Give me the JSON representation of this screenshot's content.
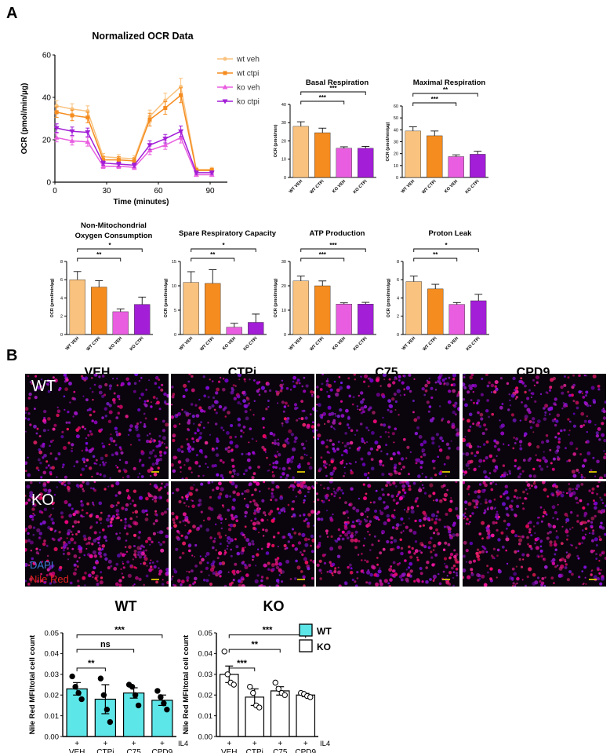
{
  "panel_labels": {
    "a": "A",
    "b": "B"
  },
  "microscopy": {
    "columns": [
      "VEH",
      "CTPi",
      "C75",
      "CPD9"
    ],
    "rows": [
      "WT",
      "KO"
    ],
    "stain_labels": [
      {
        "text": "DAPI",
        "color": "#3d7bd6"
      },
      {
        "text": "Nile Red",
        "color": "#e02020"
      }
    ]
  },
  "colors": {
    "wt_veh": "#f9c27e",
    "wt_ctpi": "#f58c1f",
    "ko_veh": "#e95ee0",
    "ko_ctpi": "#a21ed7",
    "wt_bar": "#5de6e8"
  },
  "chart_data": [
    {
      "id": "ocr_line",
      "type": "line",
      "title": "Normalized OCR Data",
      "xlabel": "Time (minutes)",
      "ylabel": "OCR (pmol/min/µg)",
      "xlim": [
        0,
        100
      ],
      "ylim": [
        0,
        60
      ],
      "xticks": [
        0,
        30,
        60,
        90
      ],
      "yticks": [
        0,
        20,
        40,
        60
      ],
      "x": [
        1,
        10,
        19,
        28,
        37,
        46,
        55,
        64,
        73,
        82,
        91
      ],
      "legend_position": "right",
      "series": [
        {
          "name": "wt veh",
          "marker": "circle",
          "values": [
            36,
            34.5,
            33.5,
            12,
            11.5,
            11,
            31,
            38.5,
            45,
            6,
            6
          ],
          "err": [
            2.5,
            2.5,
            2.5,
            1.5,
            1.5,
            1.5,
            3,
            3.5,
            4,
            1,
            1
          ]
        },
        {
          "name": "wt ctpi",
          "marker": "square",
          "values": [
            33,
            31.5,
            30.5,
            10.5,
            10.5,
            10,
            29.5,
            35,
            41,
            5.5,
            5.5
          ],
          "err": [
            2.5,
            2.5,
            2.5,
            1.5,
            1.5,
            1.5,
            3,
            3,
            3.5,
            1,
            1
          ]
        },
        {
          "name": "ko veh",
          "marker": "triangle-up",
          "values": [
            21,
            19.5,
            19,
            7.5,
            7.5,
            7,
            15,
            17.5,
            21,
            3.5,
            3.5
          ],
          "err": [
            2,
            2,
            2,
            1,
            1,
            1,
            2,
            2,
            2.5,
            0.8,
            0.8
          ]
        },
        {
          "name": "ko ctpi",
          "marker": "triangle-down",
          "values": [
            25.5,
            24,
            23.5,
            9,
            8.5,
            8,
            17.5,
            20.5,
            24,
            4.5,
            4.5
          ],
          "err": [
            2,
            2,
            2,
            1,
            1,
            1,
            2,
            2,
            2.5,
            0.8,
            0.8
          ]
        }
      ]
    },
    {
      "id": "basal",
      "type": "bar",
      "title": "Basal Respiration",
      "ylabel": "OCR (pmol/min)",
      "categories": [
        "WT VEH",
        "WT CTPi",
        "KO VEH",
        "KO CTPi"
      ],
      "values": [
        28,
        24.5,
        16,
        16
      ],
      "err": [
        2.5,
        2.5,
        0.8,
        1
      ],
      "ylim": [
        0,
        40
      ],
      "yticks": [
        0,
        10,
        20,
        30,
        40
      ],
      "significance": [
        {
          "from": 0,
          "to": 2,
          "label": "***"
        },
        {
          "from": 0,
          "to": 3,
          "label": "***"
        }
      ]
    },
    {
      "id": "maximal",
      "type": "bar",
      "title": "Maximal Respiration",
      "ylabel": "OCR (pmol/min/µg)",
      "categories": [
        "WT VEH",
        "WT CTPi",
        "KO VEH",
        "KO CTPi"
      ],
      "values": [
        39,
        35,
        17.5,
        19.5
      ],
      "err": [
        3.5,
        4,
        1.5,
        2.5
      ],
      "ylim": [
        0,
        60
      ],
      "yticks": [
        0,
        10,
        20,
        30,
        40,
        50,
        60
      ],
      "significance": [
        {
          "from": 0,
          "to": 2,
          "label": "***"
        },
        {
          "from": 0,
          "to": 3,
          "label": "**"
        }
      ]
    },
    {
      "id": "nonmito",
      "type": "bar",
      "title": "Non-Mitochondrial\nOxygen Consumption",
      "ylabel": "OCR (pmol/min/µg)",
      "categories": [
        "WT VEH",
        "WT CTPi",
        "KO VEH",
        "KO CTPi"
      ],
      "values": [
        6,
        5.2,
        2.5,
        3.3
      ],
      "err": [
        0.9,
        0.7,
        0.3,
        0.8
      ],
      "ylim": [
        0,
        8
      ],
      "yticks": [
        0,
        2,
        4,
        6,
        8
      ],
      "significance": [
        {
          "from": 0,
          "to": 2,
          "label": "**"
        },
        {
          "from": 0,
          "to": 3,
          "label": "*"
        }
      ]
    },
    {
      "id": "spare",
      "type": "bar",
      "title": "Spare Respiratory Capacity",
      "ylabel": "OCR (pmol/min/µg)",
      "categories": [
        "WT VEH",
        "WT CTPi",
        "KO VEH",
        "KO CTPi"
      ],
      "values": [
        10.7,
        10.5,
        1.5,
        2.5
      ],
      "err": [
        2.2,
        2.8,
        0.8,
        1.7
      ],
      "ylim": [
        0,
        15
      ],
      "yticks": [
        0,
        5,
        10,
        15
      ],
      "significance": [
        {
          "from": 0,
          "to": 2,
          "label": "**"
        },
        {
          "from": 0,
          "to": 3,
          "label": "*"
        }
      ]
    },
    {
      "id": "atp",
      "type": "bar",
      "title": "ATP Production",
      "ylabel": "OCR (pmol/min/µg)",
      "categories": [
        "WT VEH",
        "WT CTPi",
        "KO VEH",
        "KO CTPi"
      ],
      "values": [
        22,
        20,
        12.5,
        12.5
      ],
      "err": [
        2,
        2,
        0.5,
        0.7
      ],
      "ylim": [
        0,
        30
      ],
      "yticks": [
        0,
        10,
        20,
        30
      ],
      "significance": [
        {
          "from": 0,
          "to": 2,
          "label": "***"
        },
        {
          "from": 0,
          "to": 3,
          "label": "***"
        }
      ]
    },
    {
      "id": "proton",
      "type": "bar",
      "title": "Proton Leak",
      "ylabel": "OCR (pmol/min/µg)",
      "categories": [
        "WT VEH",
        "WT CTPi",
        "KO VEH",
        "KO CTPi"
      ],
      "values": [
        5.8,
        5,
        3.3,
        3.7
      ],
      "err": [
        0.6,
        0.5,
        0.2,
        0.7
      ],
      "ylim": [
        0,
        8
      ],
      "yticks": [
        0,
        2,
        4,
        6,
        8
      ],
      "significance": [
        {
          "from": 0,
          "to": 2,
          "label": "**"
        },
        {
          "from": 0,
          "to": 3,
          "label": "*"
        }
      ]
    },
    {
      "id": "wt_nile",
      "type": "bar",
      "title": "WT",
      "ylabel": "Nile Red MFI/total cell count",
      "categories": [
        "VEH",
        "CTPi",
        "C75",
        "CPD9"
      ],
      "treatment_marks": [
        "+",
        "+",
        "+",
        "+"
      ],
      "treatment_label": "IL4",
      "legend_label": "WT",
      "values": [
        0.023,
        0.018,
        0.021,
        0.0175
      ],
      "err": [
        0.003,
        0.007,
        0.0025,
        0.0025
      ],
      "points": [
        [
          0.029,
          0.024,
          0.021,
          0.018
        ],
        [
          0.028,
          0.02,
          0.013,
          0.007
        ],
        [
          0.025,
          0.024,
          0.02,
          0.015
        ],
        [
          0.022,
          0.019,
          0.016,
          0.013
        ]
      ],
      "ylim": [
        0,
        0.05
      ],
      "yticks": [
        0.0,
        0.01,
        0.02,
        0.03,
        0.04,
        0.05
      ],
      "significance": [
        {
          "from": 0,
          "to": 1,
          "label": "**"
        },
        {
          "from": 0,
          "to": 2,
          "label": "ns"
        },
        {
          "from": 0,
          "to": 3,
          "label": "***"
        }
      ]
    },
    {
      "id": "ko_nile",
      "type": "bar",
      "title": "KO",
      "ylabel": "Nile Red MFI/total cell count",
      "categories": [
        "VEH",
        "CTPi",
        "C75",
        "CPD9"
      ],
      "treatment_marks": [
        "+",
        "+",
        "+",
        "+"
      ],
      "treatment_label": "IL4",
      "legend_label": "KO",
      "values": [
        0.03,
        0.019,
        0.022,
        0.02
      ],
      "err": [
        0.004,
        0.004,
        0.002,
        0.0008
      ],
      "points": [
        [
          0.041,
          0.03,
          0.026,
          0.025
        ],
        [
          0.024,
          0.021,
          0.015,
          0.014
        ],
        [
          0.026,
          0.023,
          0.021,
          0.02
        ],
        [
          0.021,
          0.0205,
          0.0195,
          0.019
        ]
      ],
      "ylim": [
        0,
        0.05
      ],
      "yticks": [
        0.0,
        0.01,
        0.02,
        0.03,
        0.04,
        0.05
      ],
      "significance": [
        {
          "from": 0,
          "to": 1,
          "label": "***"
        },
        {
          "from": 0,
          "to": 2,
          "label": "**"
        },
        {
          "from": 0,
          "to": 3,
          "label": "***"
        }
      ]
    }
  ]
}
